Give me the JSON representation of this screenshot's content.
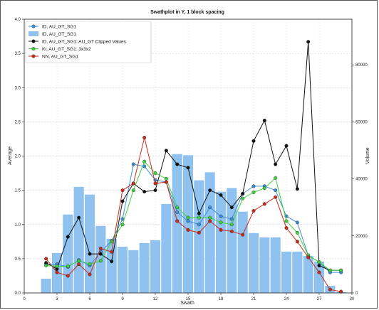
{
  "chart_data": {
    "type": "bar+line",
    "title": "Swathplot in Y, 1 block spacing",
    "xlabel": "Swath",
    "ylabel": "Average",
    "y2label": "Volume",
    "xlim": [
      0,
      30
    ],
    "ylim": [
      0,
      4.0
    ],
    "y2lim": [
      0,
      96000
    ],
    "xticks": [
      0,
      3,
      6,
      9,
      12,
      15,
      18,
      21,
      24,
      27,
      30
    ],
    "yticks": [
      0.0,
      0.5,
      1.0,
      1.5,
      2.0,
      2.5,
      3.0,
      3.5,
      4.0
    ],
    "y2ticks": [
      0,
      20000,
      40000,
      60000,
      80000
    ],
    "grid": true,
    "legend_position": "top-left",
    "bars": {
      "name": "ID, AU_GT_SG1",
      "color": "#8fc2ee",
      "x": [
        2,
        3,
        4,
        5,
        6,
        7,
        8,
        9,
        10,
        11,
        12,
        13,
        14,
        15,
        16,
        17,
        18,
        19,
        20,
        21,
        22,
        23,
        24,
        25,
        26,
        27,
        28,
        29
      ],
      "values": [
        5000,
        14000,
        27500,
        37200,
        34500,
        23500,
        19000,
        16200,
        15000,
        17500,
        18500,
        31200,
        48700,
        48300,
        39500,
        42300,
        35500,
        36800,
        28500,
        21000,
        19500,
        19500,
        14500,
        14500,
        13000,
        11000,
        2500,
        300
      ]
    },
    "series": [
      {
        "name": "ID, AU_GT_SG1",
        "color": "#3b8fd9",
        "x": [
          2,
          3,
          4,
          5,
          6,
          7,
          8,
          9,
          10,
          11,
          12,
          13,
          14,
          15,
          16,
          17,
          18,
          19,
          20,
          21,
          22,
          23,
          24,
          25,
          26,
          27,
          28,
          29
        ],
        "values": [
          0.42,
          0.42,
          0.38,
          0.48,
          0.4,
          0.6,
          0.76,
          1.08,
          1.88,
          1.85,
          1.65,
          1.62,
          1.18,
          1.05,
          1.0,
          1.25,
          1.12,
          1.08,
          1.45,
          1.56,
          1.56,
          1.5,
          1.12,
          1.03,
          0.55,
          0.45,
          0.3,
          0.3
        ]
      },
      {
        "name": "ID, AU_GT_SG1: AU_GT Clipped Values",
        "color": "#111111",
        "x": [
          2,
          3,
          4,
          5,
          6,
          7,
          8,
          9,
          10,
          11,
          12,
          13,
          14,
          15,
          16,
          17,
          18,
          19,
          20,
          21,
          22,
          23,
          24,
          25,
          26,
          27,
          28,
          29
        ],
        "values": [
          0.44,
          0.35,
          0.82,
          1.1,
          0.57,
          0.57,
          0.46,
          1.34,
          1.6,
          1.48,
          1.5,
          2.08,
          1.88,
          1.83,
          1.16,
          1.5,
          1.43,
          1.25,
          1.45,
          2.22,
          2.52,
          1.88,
          2.15,
          1.52,
          3.67,
          0.4,
          0.33,
          0.33
        ]
      },
      {
        "name": "Kr, AU_GT_SG1: 3x3x2",
        "color": "#3fd13f",
        "x": [
          2,
          3,
          4,
          5,
          6,
          7,
          8,
          9,
          10,
          11,
          12,
          13,
          14,
          15,
          16,
          17,
          18,
          19,
          20,
          21,
          22,
          23,
          24,
          25,
          26,
          27,
          28,
          29
        ],
        "values": [
          0.4,
          0.39,
          0.39,
          0.47,
          0.42,
          0.47,
          0.75,
          1.0,
          1.5,
          1.92,
          1.75,
          1.67,
          1.25,
          1.1,
          1.1,
          1.1,
          1.03,
          1.0,
          1.38,
          1.47,
          1.53,
          1.68,
          1.05,
          0.88,
          0.55,
          0.45,
          0.33,
          0.33
        ]
      },
      {
        "name": "NN, AU_GT_SG1",
        "color": "#cc2a1a",
        "x": [
          2,
          3,
          4,
          5,
          6,
          7,
          8,
          9,
          10,
          11,
          12,
          13,
          14,
          15,
          16,
          17,
          18,
          19,
          20,
          21,
          22,
          23,
          24,
          25,
          26,
          27,
          28,
          29
        ],
        "values": [
          0.5,
          0.3,
          0.25,
          0.42,
          0.27,
          0.65,
          0.6,
          1.5,
          1.6,
          2.27,
          1.6,
          1.62,
          1.05,
          0.92,
          0.88,
          1.05,
          0.92,
          0.9,
          0.85,
          1.2,
          1.3,
          1.4,
          0.95,
          0.75,
          0.52,
          0.3,
          0.05,
          0.02
        ]
      }
    ]
  },
  "legend": [
    {
      "label": "ID, AU_GT_SG1",
      "kind": "line",
      "color": "#3b8fd9"
    },
    {
      "label": "ID, AU_GT_SG1",
      "kind": "bar",
      "color": "#8fc2ee"
    },
    {
      "label": "ID, AU_GT_SG1: AU_GT Clipped Values",
      "kind": "line",
      "color": "#111111"
    },
    {
      "label": "Kr, AU_GT_SG1: 3x3x2",
      "kind": "line",
      "color": "#3fd13f"
    },
    {
      "label": "NN, AU_GT_SG1",
      "kind": "line",
      "color": "#cc2a1a"
    }
  ]
}
